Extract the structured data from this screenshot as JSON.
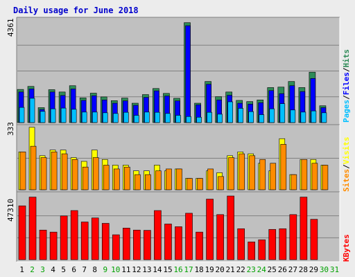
{
  "title": "Daily usage for June 2018",
  "colors": {
    "background": "#ececec",
    "plot_bg": "#c0c0c0",
    "title": "#0000cc",
    "hits": "#2e8b57",
    "files": "#0000ff",
    "pages": "#00bfff",
    "visits": "#ffff00",
    "sites": "#ff8c00",
    "kbytes": "#ff0000",
    "weekend_day": "#00a000",
    "weekday": "#000000"
  },
  "right_labels": {
    "top": {
      "pages": "Pages",
      "files": "Files",
      "hits": "Hits",
      "sep": "/"
    },
    "mid": {
      "sites": "Sites",
      "visits": "Visits",
      "sep": "/"
    },
    "bot": {
      "kbytes": "KBytes"
    }
  },
  "chart_data": [
    {
      "type": "bar",
      "panel": "top",
      "axis_max_label": "4361",
      "ylim": [
        0,
        4361
      ],
      "categories": [
        "1",
        "2",
        "3",
        "4",
        "5",
        "6",
        "7",
        "8",
        "9",
        "10",
        "11",
        "12",
        "13",
        "14",
        "15",
        "16",
        "17",
        "18",
        "19",
        "20",
        "21",
        "22",
        "23",
        "24",
        "25",
        "26",
        "27",
        "28",
        "29",
        "30",
        "31"
      ],
      "series": [
        {
          "name": "Hits",
          "values": [
            1420,
            1550,
            640,
            1410,
            1310,
            1580,
            1060,
            1260,
            1100,
            940,
            1050,
            830,
            1200,
            1460,
            1250,
            1040,
            4280,
            830,
            1760,
            1110,
            1310,
            950,
            900,
            970,
            1500,
            1520,
            1760,
            1500,
            2160,
            720,
            0
          ]
        },
        {
          "name": "Files",
          "values": [
            1310,
            1440,
            560,
            1310,
            1160,
            1440,
            950,
            1150,
            970,
            830,
            930,
            740,
            1080,
            1360,
            1140,
            930,
            4150,
            760,
            1640,
            970,
            1170,
            830,
            790,
            850,
            1370,
            1240,
            1580,
            1330,
            1890,
            640,
            0
          ]
        },
        {
          "name": "Pages",
          "values": [
            650,
            1040,
            480,
            590,
            620,
            570,
            450,
            450,
            420,
            390,
            440,
            310,
            450,
            440,
            390,
            310,
            260,
            230,
            440,
            360,
            890,
            610,
            470,
            340,
            590,
            810,
            540,
            450,
            500,
            420,
            0
          ]
        }
      ]
    },
    {
      "type": "bar",
      "panel": "middle",
      "axis_max_label": "333",
      "ylim": [
        0,
        333
      ],
      "categories": [
        "1",
        "2",
        "3",
        "4",
        "5",
        "6",
        "7",
        "8",
        "9",
        "10",
        "11",
        "12",
        "13",
        "14",
        "15",
        "16",
        "17",
        "18",
        "19",
        "20",
        "21",
        "22",
        "23",
        "24",
        "25",
        "26",
        "27",
        "28",
        "29",
        "30",
        "31"
      ],
      "series": [
        {
          "name": "Visits",
          "values": [
            200,
            330,
            180,
            210,
            210,
            170,
            150,
            210,
            160,
            130,
            130,
            100,
            100,
            130,
            100,
            110,
            60,
            60,
            100,
            90,
            180,
            200,
            190,
            140,
            100,
            270,
            80,
            160,
            160,
            130,
            0
          ]
        },
        {
          "name": "Sites",
          "values": [
            200,
            230,
            170,
            200,
            190,
            160,
            120,
            170,
            130,
            110,
            120,
            80,
            80,
            100,
            110,
            110,
            60,
            60,
            110,
            70,
            170,
            190,
            180,
            160,
            140,
            240,
            80,
            160,
            140,
            130,
            0
          ]
        }
      ]
    },
    {
      "type": "bar",
      "panel": "bottom",
      "axis_max_label": "47310",
      "ylim": [
        0,
        47310
      ],
      "categories": [
        "1",
        "2",
        "3",
        "4",
        "5",
        "6",
        "7",
        "8",
        "9",
        "10",
        "11",
        "12",
        "13",
        "14",
        "15",
        "16",
        "17",
        "18",
        "19",
        "20",
        "21",
        "22",
        "23",
        "24",
        "25",
        "26",
        "27",
        "28",
        "29",
        "30",
        "31"
      ],
      "series": [
        {
          "name": "KBytes",
          "values": [
            40000,
            46500,
            22000,
            20500,
            32500,
            36500,
            28000,
            31000,
            27000,
            18500,
            23500,
            22000,
            21800,
            36500,
            26500,
            24500,
            34500,
            20500,
            45000,
            33500,
            47310,
            23000,
            13200,
            14800,
            22500,
            23000,
            33500,
            46500,
            30000,
            0,
            0
          ]
        }
      ]
    }
  ],
  "day_labels": [
    "1",
    "2",
    "3",
    "4",
    "5",
    "6",
    "7",
    "8",
    "9",
    "10",
    "11",
    "12",
    "13",
    "14",
    "15",
    "16",
    "17",
    "18",
    "19",
    "20",
    "21",
    "22",
    "23",
    "24",
    "25",
    "26",
    "27",
    "28",
    "29",
    "30",
    "31"
  ],
  "weekend_days": [
    2,
    3,
    9,
    10,
    16,
    17,
    23,
    24,
    30,
    31
  ]
}
